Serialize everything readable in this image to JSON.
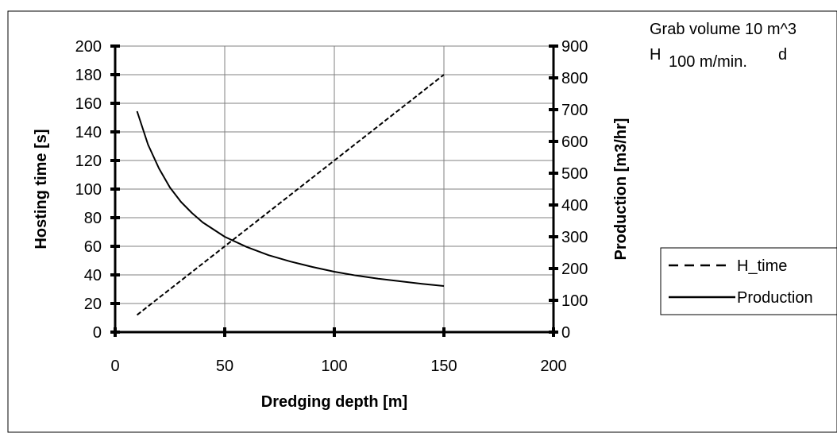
{
  "chart_data": {
    "type": "line",
    "xlabel": "Dredging depth [m]",
    "ylabel": "Hosting time [s]",
    "y2label": "Production [m3/hr]",
    "xlim": [
      0,
      200
    ],
    "ylim": [
      0,
      200
    ],
    "y2lim": [
      0,
      900
    ],
    "x_ticks": [
      "0",
      "50",
      "100",
      "150",
      "200"
    ],
    "y_ticks": [
      "0",
      "20",
      "40",
      "60",
      "80",
      "100",
      "120",
      "140",
      "160",
      "180",
      "200"
    ],
    "y2_ticks": [
      "0",
      "100",
      "200",
      "300",
      "400",
      "500",
      "600",
      "700",
      "800",
      "900"
    ],
    "grid": true,
    "legend_position": "right",
    "annotations": [
      "Grab volume 10 m^3",
      "H",
      "100 m/min.",
      "d"
    ],
    "series": [
      {
        "name": "H_time",
        "axis": "left",
        "style": "dashed",
        "x": [
          10,
          20,
          30,
          40,
          50,
          60,
          70,
          80,
          90,
          100,
          110,
          120,
          130,
          140,
          150
        ],
        "y": [
          12,
          24,
          36,
          48,
          60,
          72,
          84,
          96,
          108,
          120,
          132,
          144,
          156,
          168,
          180
        ]
      },
      {
        "name": "Production",
        "axis": "right",
        "style": "solid",
        "x": [
          10,
          15,
          20,
          25,
          30,
          35,
          40,
          50,
          60,
          70,
          80,
          90,
          100,
          110,
          120,
          130,
          140,
          150
        ],
        "y": [
          695,
          590,
          515,
          455,
          410,
          375,
          345,
          300,
          268,
          242,
          222,
          205,
          190,
          178,
          168,
          160,
          152,
          145
        ]
      }
    ]
  }
}
